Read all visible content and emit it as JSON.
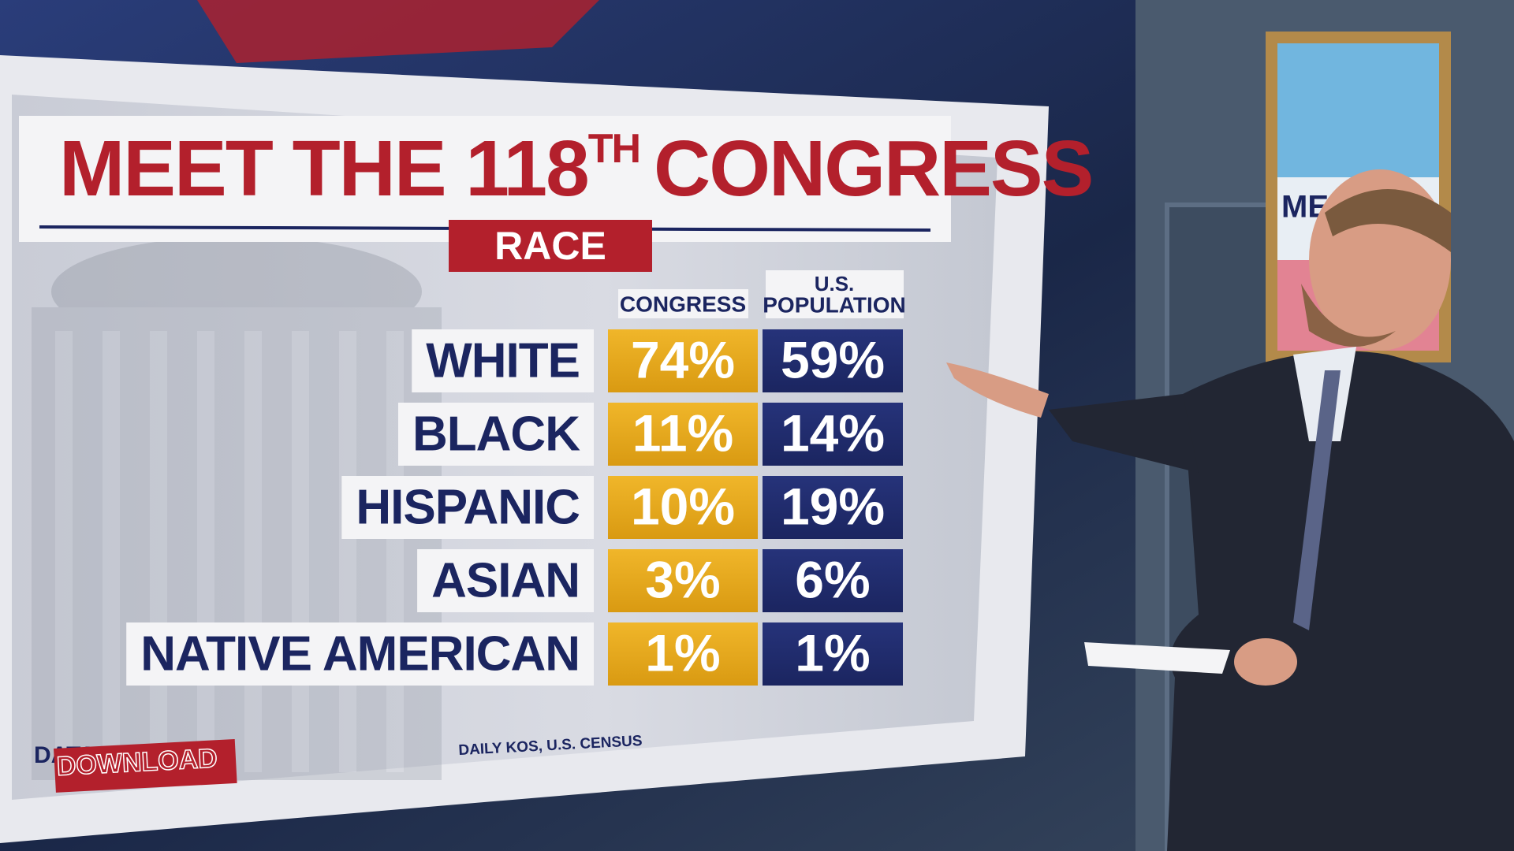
{
  "header": {
    "title": "MEET THE 118",
    "title_superscript": "TH",
    "title_end": "CONGRESS",
    "subtitle": "RACE"
  },
  "table": {
    "columns": [
      "CONGRESS",
      [
        "U.S.",
        "POPULATION"
      ]
    ],
    "rows": [
      [
        "WHITE",
        "74%",
        "59%"
      ],
      [
        "BLACK",
        "11%",
        "14%"
      ],
      [
        "HISPANIC",
        "10%",
        "19%"
      ],
      [
        "ASIAN",
        "3%",
        "6%"
      ],
      [
        "NATIVE AMERICAN",
        "1%",
        "1%"
      ]
    ]
  },
  "source": "DAILY KOS, U.S. CENSUS",
  "logo": {
    "top": "DATA",
    "bottom": "DOWNLOAD"
  },
  "poster": "MEET"
}
